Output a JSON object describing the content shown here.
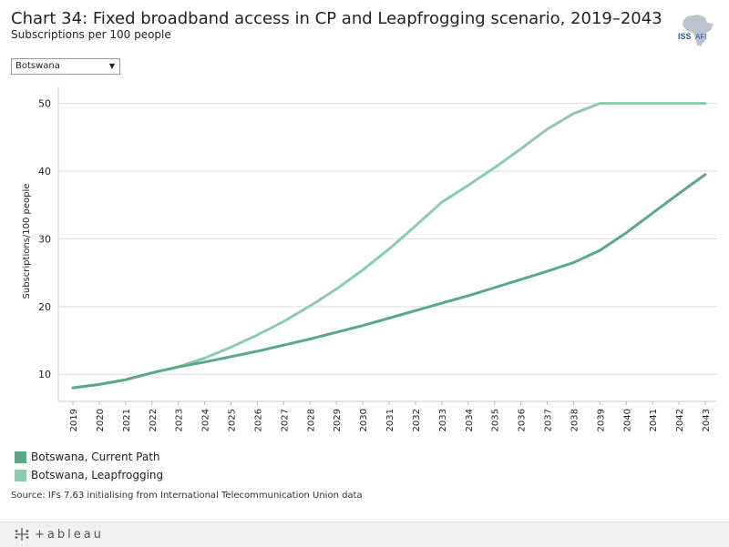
{
  "header": {
    "title": "Chart 34: Fixed broadband access in CP and Leapfrogging scenario, 2019–2043",
    "subtitle": "Subscriptions per 100 people",
    "logo_text_1": "ISS",
    "logo_text_2": "AFI"
  },
  "filter": {
    "selected": "Botswana",
    "icon": "chevron-down-icon"
  },
  "footer": {
    "source": "Source: IFs 7.63 initialising from International Telecommunication Union data",
    "brand": "+ableau"
  },
  "colors": {
    "current_path": "#5aa885",
    "leapfrogging": "#8ccbb0",
    "grid": "#dddddd",
    "footer_bg": "#f0f0f0"
  },
  "chart_data": {
    "type": "line",
    "title": "Chart 34: Fixed broadband access in CP and Leapfrogging scenario, 2019–2043",
    "subtitle": "Subscriptions per 100 people",
    "xlabel": "",
    "ylabel": "Subscriptions/100 people",
    "ylim": [
      6,
      52.5
    ],
    "yticks": [
      10,
      20,
      30,
      40,
      50
    ],
    "grid": true,
    "legend": "bottom-left",
    "x": [
      "2019",
      "2020",
      "2021",
      "2022",
      "2023",
      "2024",
      "2025",
      "2026",
      "2027",
      "2028",
      "2029",
      "2030",
      "2031",
      "2032",
      "2033",
      "2034",
      "2035",
      "2036",
      "2037",
      "2038",
      "2039",
      "2040",
      "2041",
      "2042",
      "2043"
    ],
    "series": [
      {
        "name": "Botswana, Current Path",
        "color": "#5aa885",
        "values": [
          8.0,
          8.5,
          9.2,
          10.2,
          11.1,
          11.8,
          12.6,
          13.4,
          14.3,
          15.2,
          16.2,
          17.2,
          18.3,
          19.4,
          20.5,
          21.6,
          22.8,
          24.0,
          25.2,
          26.5,
          28.3,
          30.9,
          33.8,
          36.7,
          39.5
        ]
      },
      {
        "name": "Botswana, Leapfrogging",
        "color": "#8ccbb0",
        "values": [
          8.0,
          8.5,
          9.2,
          10.2,
          11.1,
          12.4,
          14.0,
          15.8,
          17.8,
          20.1,
          22.6,
          25.4,
          28.5,
          31.9,
          35.4,
          37.9,
          40.5,
          43.3,
          46.2,
          48.5,
          50.0,
          50.0,
          50.0,
          50.0,
          50.0
        ]
      }
    ]
  }
}
